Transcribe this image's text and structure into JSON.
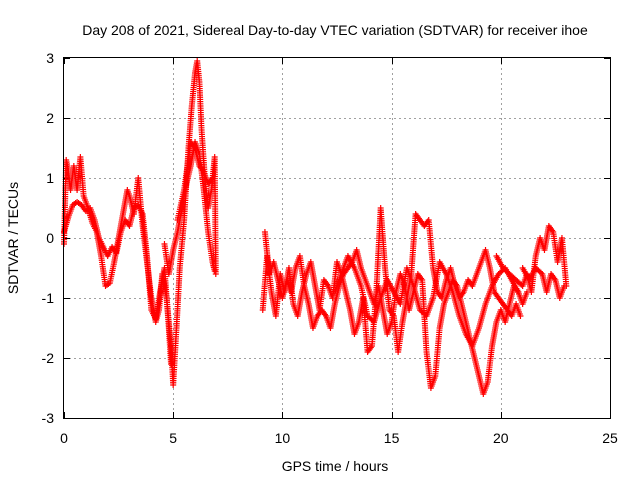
{
  "chart_data": {
    "type": "scatter",
    "title": "Day 208 of 2021, Sidereal Day-to-day VTEC variation (SDTVAR) for receiver ihoe",
    "xlabel": "GPS time / hours",
    "ylabel": "SDTVAR / TECUs",
    "xlim": [
      0,
      25
    ],
    "ylim": [
      -3,
      3
    ],
    "xticks": [
      0,
      5,
      10,
      15,
      20,
      25
    ],
    "yticks": [
      -3,
      -2,
      -1,
      0,
      1,
      2,
      3
    ],
    "xtick_labels": [
      "0",
      "5",
      "10",
      "15",
      "20",
      "25"
    ],
    "ytick_labels": [
      "-3",
      "-2",
      "-1",
      "0",
      "1",
      "2",
      "3"
    ],
    "grid": true,
    "marker": "+",
    "color": "#ff0000",
    "series": [
      {
        "name": "SDTVAR",
        "traces": [
          [
            [
              0.0,
              -0.1
            ],
            [
              0.1,
              1.3
            ],
            [
              0.2,
              1.1
            ],
            [
              0.3,
              0.8
            ],
            [
              0.45,
              1.2
            ],
            [
              0.6,
              0.8
            ],
            [
              0.75,
              1.35
            ],
            [
              0.9,
              0.7
            ],
            [
              1.1,
              0.5
            ],
            [
              1.3,
              0.25
            ],
            [
              1.5,
              0.1
            ],
            [
              1.7,
              -0.3
            ],
            [
              1.9,
              -0.8
            ],
            [
              2.1,
              -0.75
            ],
            [
              2.3,
              -0.4
            ],
            [
              2.5,
              0.0
            ],
            [
              2.7,
              0.4
            ],
            [
              2.9,
              0.8
            ],
            [
              3.0,
              0.7
            ],
            [
              3.2,
              0.4
            ],
            [
              3.4,
              1.0
            ],
            [
              3.6,
              0.2
            ],
            [
              3.8,
              -0.4
            ],
            [
              4.0,
              -1.0
            ],
            [
              4.2,
              -1.4
            ],
            [
              4.35,
              -1.2
            ],
            [
              4.5,
              -0.6
            ],
            [
              4.7,
              -1.0
            ],
            [
              4.9,
              -1.8
            ],
            [
              5.0,
              -2.45
            ],
            [
              5.15,
              -1.5
            ],
            [
              5.3,
              -0.5
            ],
            [
              5.5,
              0.3
            ],
            [
              5.7,
              1.5
            ],
            [
              5.85,
              2.2
            ],
            [
              6.0,
              2.75
            ],
            [
              6.1,
              2.95
            ],
            [
              6.2,
              2.6
            ],
            [
              6.3,
              1.8
            ],
            [
              6.45,
              1.0
            ],
            [
              6.6,
              0.5
            ],
            [
              6.75,
              0.8
            ],
            [
              6.9,
              1.35
            ],
            [
              6.95,
              -0.6
            ]
          ],
          [
            [
              0.0,
              0.1
            ],
            [
              0.2,
              0.35
            ],
            [
              0.4,
              0.55
            ],
            [
              0.6,
              0.6
            ],
            [
              0.8,
              0.55
            ],
            [
              1.0,
              0.45
            ],
            [
              1.2,
              0.5
            ],
            [
              1.4,
              0.3
            ],
            [
              1.6,
              0.0
            ],
            [
              1.8,
              -0.15
            ],
            [
              2.0,
              -0.3
            ],
            [
              2.2,
              -0.15
            ],
            [
              2.4,
              -0.25
            ],
            [
              2.6,
              0.1
            ],
            [
              2.8,
              0.3
            ],
            [
              3.0,
              0.2
            ],
            [
              3.2,
              0.5
            ],
            [
              3.4,
              0.55
            ],
            [
              3.6,
              0.4
            ],
            [
              3.8,
              -0.3
            ],
            [
              4.0,
              -1.2
            ],
            [
              4.2,
              -1.35
            ],
            [
              4.4,
              -0.9
            ],
            [
              4.6,
              -0.5
            ],
            [
              4.8,
              -1.5
            ],
            [
              4.9,
              -2.1
            ]
          ],
          [
            [
              4.6,
              -0.1
            ],
            [
              4.8,
              -0.6
            ],
            [
              5.0,
              -0.2
            ],
            [
              5.2,
              0.1
            ],
            [
              5.4,
              0.5
            ],
            [
              5.6,
              0.9
            ],
            [
              5.8,
              1.2
            ],
            [
              6.0,
              1.6
            ],
            [
              6.2,
              1.4
            ],
            [
              6.4,
              0.8
            ],
            [
              6.6,
              0.1
            ],
            [
              6.8,
              -0.4
            ],
            [
              6.9,
              -0.55
            ]
          ],
          [
            [
              5.2,
              0.3
            ],
            [
              5.5,
              0.8
            ],
            [
              5.8,
              1.6
            ],
            [
              6.0,
              1.5
            ],
            [
              6.2,
              1.2
            ],
            [
              6.4,
              1.1
            ],
            [
              6.6,
              0.9
            ],
            [
              6.8,
              1.0
            ]
          ],
          [
            [
              9.1,
              -1.2
            ],
            [
              9.3,
              -0.3
            ],
            [
              9.5,
              -0.9
            ],
            [
              9.7,
              -1.3
            ],
            [
              9.9,
              -0.6
            ],
            [
              10.1,
              -0.9
            ],
            [
              10.3,
              -0.5
            ],
            [
              10.5,
              -1.1
            ],
            [
              10.7,
              -1.3
            ],
            [
              10.9,
              -0.9
            ],
            [
              11.1,
              -0.6
            ],
            [
              11.3,
              -0.4
            ],
            [
              11.5,
              -0.8
            ],
            [
              11.7,
              -1.2
            ],
            [
              11.9,
              -0.7
            ],
            [
              12.1,
              -0.8
            ],
            [
              12.3,
              -1.0
            ],
            [
              12.5,
              -0.4
            ],
            [
              12.7,
              -0.6
            ],
            [
              12.9,
              -0.9
            ],
            [
              13.1,
              -1.2
            ],
            [
              13.3,
              -1.6
            ],
            [
              13.5,
              -1.4
            ],
            [
              13.7,
              -1.0
            ],
            [
              13.9,
              -1.9
            ],
            [
              14.1,
              -1.8
            ],
            [
              14.3,
              -0.9
            ],
            [
              14.5,
              0.5
            ],
            [
              14.7,
              -0.5
            ],
            [
              14.9,
              -1.2
            ],
            [
              15.1,
              -1.3
            ],
            [
              15.3,
              -1.9
            ],
            [
              15.5,
              -1.4
            ],
            [
              15.7,
              -1.0
            ],
            [
              15.9,
              -0.6
            ],
            [
              16.1,
              0.4
            ],
            [
              16.3,
              0.3
            ],
            [
              16.5,
              0.2
            ],
            [
              16.7,
              0.3
            ],
            [
              16.9,
              -0.5
            ],
            [
              17.1,
              -0.9
            ],
            [
              17.3,
              -1.0
            ],
            [
              17.5,
              -0.7
            ],
            [
              17.7,
              -0.5
            ],
            [
              17.9,
              -0.8
            ],
            [
              18.1,
              -1.0
            ],
            [
              18.3,
              -0.9
            ],
            [
              18.5,
              -0.7
            ],
            [
              18.7,
              -0.8
            ],
            [
              18.9,
              -0.6
            ],
            [
              19.1,
              -0.4
            ],
            [
              19.3,
              -0.2
            ],
            [
              19.5,
              -0.5
            ],
            [
              19.7,
              -0.9
            ],
            [
              19.9,
              -1.0
            ],
            [
              20.1,
              -1.1
            ],
            [
              20.3,
              -1.2
            ],
            [
              20.5,
              -1.3
            ],
            [
              20.7,
              -1.1
            ],
            [
              20.9,
              -1.3
            ]
          ],
          [
            [
              9.2,
              0.1
            ],
            [
              9.4,
              -0.6
            ],
            [
              9.6,
              -0.4
            ],
            [
              9.8,
              -0.7
            ],
            [
              10.0,
              -1.0
            ],
            [
              10.2,
              -0.7
            ],
            [
              10.4,
              -0.9
            ],
            [
              10.6,
              -0.5
            ],
            [
              10.8,
              -0.3
            ],
            [
              11.0,
              -0.8
            ],
            [
              11.2,
              -1.1
            ],
            [
              11.4,
              -1.5
            ],
            [
              11.6,
              -1.3
            ],
            [
              11.8,
              -1.2
            ],
            [
              12.0,
              -1.3
            ],
            [
              12.2,
              -1.5
            ],
            [
              12.4,
              -1.1
            ],
            [
              12.6,
              -0.8
            ],
            [
              12.8,
              -0.6
            ],
            [
              13.0,
              -0.5
            ],
            [
              13.2,
              -0.4
            ],
            [
              13.4,
              -0.2
            ],
            [
              13.6,
              -0.5
            ],
            [
              13.8,
              -0.7
            ],
            [
              14.0,
              -0.9
            ],
            [
              14.2,
              -1.1
            ],
            [
              14.4,
              -0.8
            ],
            [
              14.6,
              -1.2
            ],
            [
              14.8,
              -1.6
            ],
            [
              15.0,
              -1.4
            ],
            [
              15.2,
              -0.9
            ],
            [
              15.4,
              -0.6
            ],
            [
              15.6,
              -0.8
            ],
            [
              15.8,
              -1.2
            ],
            [
              16.0,
              -0.9
            ],
            [
              16.2,
              -0.6
            ],
            [
              16.4,
              -0.7
            ],
            [
              16.6,
              -1.9
            ],
            [
              16.8,
              -2.5
            ],
            [
              17.0,
              -2.3
            ],
            [
              17.2,
              -1.5
            ],
            [
              17.4,
              -1.1
            ],
            [
              17.6,
              -0.9
            ],
            [
              17.8,
              -0.7
            ],
            [
              18.0,
              -0.8
            ],
            [
              18.2,
              -1.1
            ],
            [
              18.4,
              -1.4
            ],
            [
              18.6,
              -1.7
            ],
            [
              18.8,
              -2.0
            ],
            [
              19.0,
              -2.3
            ],
            [
              19.2,
              -2.6
            ],
            [
              19.4,
              -2.4
            ],
            [
              19.6,
              -1.8
            ],
            [
              19.8,
              -1.4
            ],
            [
              20.0,
              -1.2
            ],
            [
              20.2,
              -1.4
            ],
            [
              20.4,
              -1.1
            ],
            [
              20.6,
              -0.8
            ],
            [
              20.8,
              -0.9
            ],
            [
              21.0,
              -1.1
            ],
            [
              21.2,
              -0.9
            ]
          ],
          [
            [
              12.4,
              -0.9
            ],
            [
              12.7,
              -0.6
            ],
            [
              13.0,
              -0.3
            ],
            [
              13.3,
              -0.5
            ],
            [
              13.6,
              -0.8
            ],
            [
              13.9,
              -1.3
            ],
            [
              14.2,
              -1.4
            ],
            [
              14.5,
              -1.0
            ],
            [
              14.8,
              -0.7
            ],
            [
              15.1,
              -0.9
            ],
            [
              15.4,
              -1.1
            ],
            [
              15.7,
              -0.5
            ],
            [
              16.0,
              -0.8
            ],
            [
              16.3,
              -1.2
            ],
            [
              16.6,
              -1.3
            ],
            [
              16.9,
              -1.0
            ],
            [
              17.2,
              -0.4
            ],
            [
              17.5,
              -0.6
            ],
            [
              17.8,
              -0.9
            ],
            [
              18.1,
              -1.3
            ],
            [
              18.4,
              -1.6
            ],
            [
              18.7,
              -1.8
            ],
            [
              19.0,
              -1.5
            ],
            [
              19.3,
              -1.1
            ],
            [
              19.6,
              -0.8
            ],
            [
              19.9,
              -0.6
            ],
            [
              20.2,
              -0.5
            ],
            [
              20.5,
              -0.7
            ],
            [
              20.8,
              -0.9
            ]
          ],
          [
            [
              19.8,
              -0.3
            ],
            [
              20.1,
              -0.5
            ],
            [
              20.4,
              -0.6
            ],
            [
              20.7,
              -0.7
            ],
            [
              21.0,
              -0.8
            ],
            [
              21.2,
              -0.6
            ],
            [
              21.4,
              -0.9
            ],
            [
              21.6,
              -0.3
            ],
            [
              21.8,
              0.0
            ],
            [
              22.0,
              -0.2
            ],
            [
              22.2,
              0.2
            ],
            [
              22.4,
              0.1
            ],
            [
              22.6,
              -0.4
            ],
            [
              22.8,
              0.0
            ],
            [
              23.0,
              -0.8
            ]
          ],
          [
            [
              21.0,
              -0.5
            ],
            [
              21.3,
              -0.7
            ],
            [
              21.6,
              -0.5
            ],
            [
              21.9,
              -0.6
            ],
            [
              22.1,
              -0.9
            ],
            [
              22.3,
              -0.6
            ],
            [
              22.5,
              -0.7
            ],
            [
              22.7,
              -1.0
            ],
            [
              22.9,
              -0.8
            ]
          ]
        ]
      }
    ]
  }
}
